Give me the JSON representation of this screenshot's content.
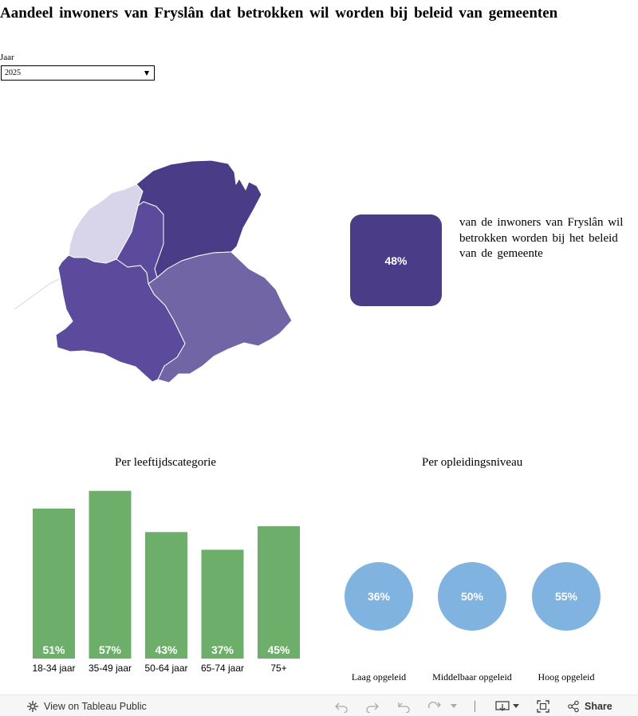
{
  "title": "Aandeel inwoners van Fryslân dat betrokken wil worden bij beleid van gemeenten",
  "filter": {
    "label": "Jaar",
    "value": "2025"
  },
  "kpi": {
    "value": "48%",
    "description": "van de inwoners van Fryslân wil betrokken worden bij het beleid van de gemeente"
  },
  "colors": {
    "kpi": "#4a3c87",
    "bar": "#6daf6a",
    "circle": "#80b3df",
    "map_dark": "#4b3c88",
    "map_mid": "#5c4b9c",
    "map_light": "#7265a6",
    "map_pale": "#d8d4e9"
  },
  "age_section": {
    "title": "Per leeftijdscategorie"
  },
  "education_section": {
    "title": "Per opleidingsniveau"
  },
  "chart_data": [
    {
      "type": "bar",
      "title": "Per leeftijdscategorie",
      "categories": [
        "18-34 jaar",
        "35-49 jaar",
        "50-64 jaar",
        "65-74 jaar",
        "75+"
      ],
      "values": [
        51,
        57,
        43,
        37,
        45
      ],
      "labels": [
        "51%",
        "57%",
        "43%",
        "37%",
        "45%"
      ]
    },
    {
      "type": "bubble",
      "title": "Per opleidingsniveau",
      "categories": [
        "Laag opgeleid",
        "Middelbaar opgeleid",
        "Hoog opgeleid"
      ],
      "values": [
        36,
        50,
        55
      ],
      "labels": [
        "36%",
        "50%",
        "55%"
      ]
    }
  ],
  "footer": {
    "view_label": "View on Tableau Public",
    "share_label": "Share"
  }
}
